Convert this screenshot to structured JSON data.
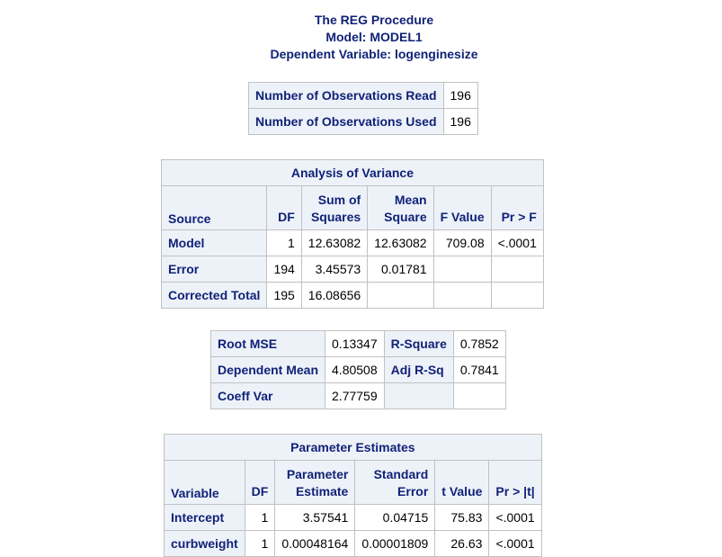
{
  "titles": {
    "procedure": "The REG Procedure",
    "model": "Model: MODEL1",
    "dependent": "Dependent Variable: logenginesize"
  },
  "observations": {
    "rows": [
      {
        "label": "Number of Observations Read",
        "value": "196"
      },
      {
        "label": "Number of Observations Used",
        "value": "196"
      }
    ]
  },
  "anova": {
    "caption": "Analysis of Variance",
    "headers": {
      "source": "Source",
      "df": "DF",
      "ss_line1": "Sum of",
      "ss_line2": "Squares",
      "ms_line1": "Mean",
      "ms_line2": "Square",
      "f": "F Value",
      "p": "Pr > F"
    },
    "rows": [
      {
        "source": "Model",
        "df": "1",
        "ss": "12.63082",
        "ms": "12.63082",
        "f": "709.08",
        "p": "<.0001"
      },
      {
        "source": "Error",
        "df": "194",
        "ss": "3.45573",
        "ms": "0.01781",
        "f": "",
        "p": ""
      },
      {
        "source": "Corrected Total",
        "df": "195",
        "ss": "16.08656",
        "ms": "",
        "f": "",
        "p": ""
      }
    ]
  },
  "fit": {
    "rows": [
      {
        "label1": "Root MSE",
        "value1": "0.13347",
        "label2": "R-Square",
        "value2": "0.7852"
      },
      {
        "label1": "Dependent Mean",
        "value1": "4.80508",
        "label2": "Adj R-Sq",
        "value2": "0.7841"
      },
      {
        "label1": "Coeff Var",
        "value1": "2.77759",
        "label2": "",
        "value2": ""
      }
    ]
  },
  "params": {
    "caption": "Parameter Estimates",
    "headers": {
      "variable": "Variable",
      "df": "DF",
      "est_line1": "Parameter",
      "est_line2": "Estimate",
      "se_line1": "Standard",
      "se_line2": "Error",
      "t": "t Value",
      "p": "Pr > |t|"
    },
    "rows": [
      {
        "variable": "Intercept",
        "df": "1",
        "estimate": "3.57541",
        "se": "0.04715",
        "t": "75.83",
        "p": "<.0001"
      },
      {
        "variable": "curbweight",
        "df": "1",
        "estimate": "0.00048164",
        "se": "0.00001809",
        "t": "26.63",
        "p": "<.0001"
      }
    ]
  }
}
